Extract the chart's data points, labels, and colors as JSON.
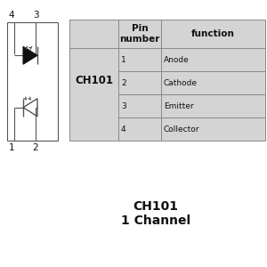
{
  "bg_color": "#ffffff",
  "table_bg": "#d4d4d4",
  "table_border": "#888888",
  "title": "CH101",
  "subtitle": "1 Channel",
  "ch_label": "CH101",
  "col_headers": [
    "Pin\nnumber",
    "function"
  ],
  "rows": [
    [
      "1",
      "Anode"
    ],
    [
      "2",
      "Cathode"
    ],
    [
      "3",
      "Emitter"
    ],
    [
      "4",
      "Collector"
    ]
  ],
  "pin_labels_tl": "4",
  "pin_labels_tr": "3",
  "pin_labels_bl": "1",
  "pin_labels_br": "2",
  "title_fontsize": 10,
  "subtitle_fontsize": 10,
  "header_fontsize": 7.5,
  "cell_fontsize": 6.5,
  "ch_fontsize": 8.5,
  "pin_fontsize": 7.5,
  "line_color": "#555555",
  "text_color": "#111111"
}
